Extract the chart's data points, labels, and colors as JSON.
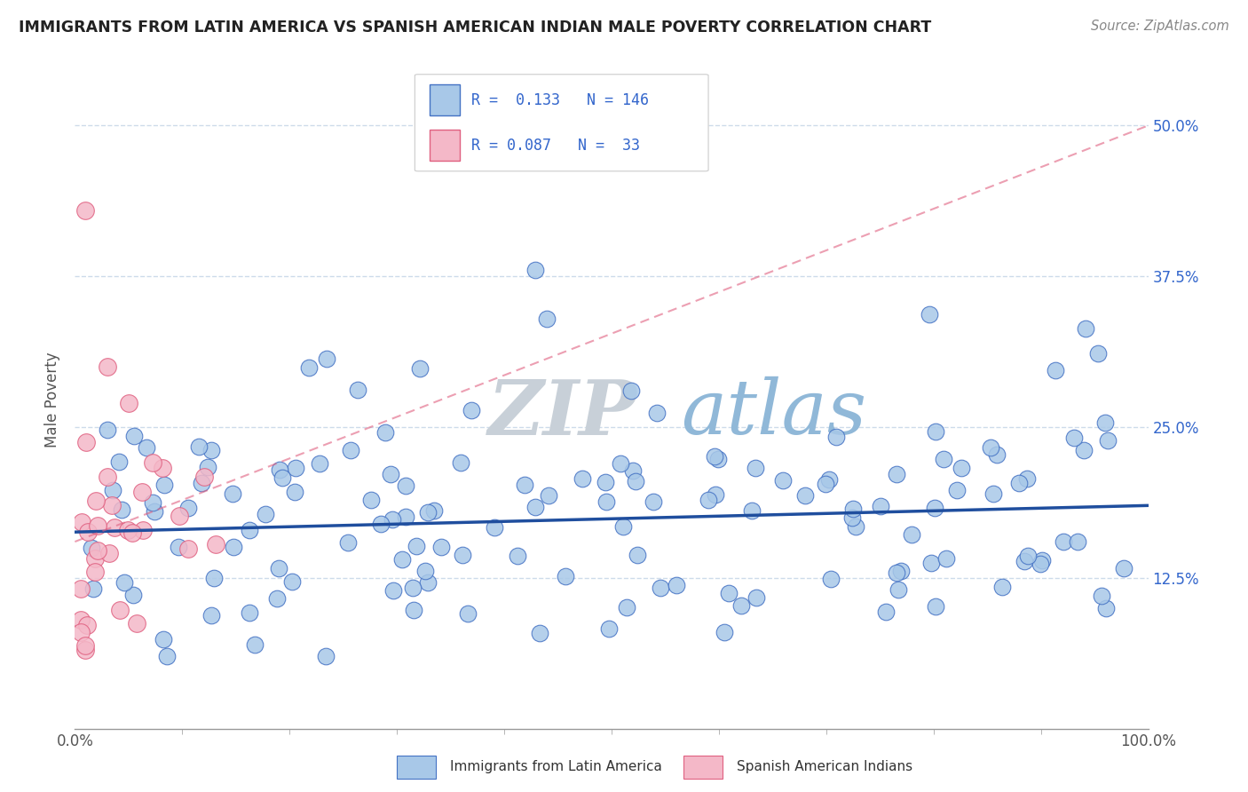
{
  "title": "IMMIGRANTS FROM LATIN AMERICA VS SPANISH AMERICAN INDIAN MALE POVERTY CORRELATION CHART",
  "source_text": "Source: ZipAtlas.com",
  "ylabel": "Male Poverty",
  "xlim": [
    0.0,
    1.0
  ],
  "ylim": [
    0.0,
    0.545
  ],
  "x_tick_labels": [
    "0.0%",
    "100.0%"
  ],
  "y_tick_values": [
    0.125,
    0.25,
    0.375,
    0.5
  ],
  "y_tick_labels": [
    "12.5%",
    "25.0%",
    "37.5%",
    "50.0%"
  ],
  "color_blue_fill": "#a8c8e8",
  "color_blue_edge": "#4472c4",
  "color_blue_line": "#1f4e9e",
  "color_pink_fill": "#f4b8c8",
  "color_pink_edge": "#e06080",
  "color_pink_line": "#e06080",
  "watermark_ZIP": "#c8d0d8",
  "watermark_atlas": "#90b8d8",
  "grid_color": "#c8d8e8",
  "legend_text_color": "#3366cc",
  "bottom_legend_text_color": "#333333",
  "source_color": "#888888",
  "title_color": "#222222",
  "right_tick_color": "#3366cc",
  "blue_regression_start_y": 0.163,
  "blue_regression_end_y": 0.185,
  "pink_regression_start_y": 0.155,
  "pink_regression_end_y": 0.5
}
